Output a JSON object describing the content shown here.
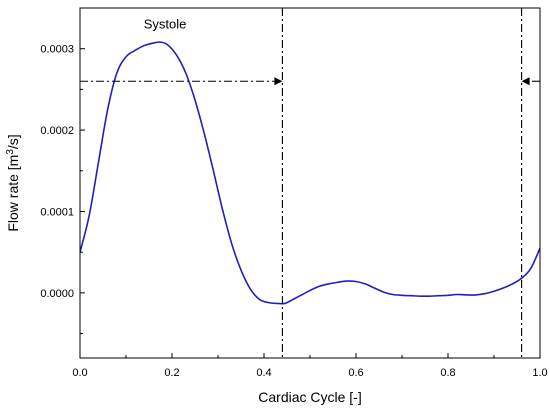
{
  "chart_data": {
    "type": "line",
    "xlabel": "Cardiac Cycle [-]",
    "ylabel_prefix": "Flow rate [m",
    "ylabel_sup": "3",
    "ylabel_suffix": "/s]",
    "xlim": [
      0.0,
      1.0
    ],
    "ylim": [
      -8e-05,
      0.00035
    ],
    "xticks": [
      0.0,
      0.2,
      0.4,
      0.6,
      0.8,
      1.0
    ],
    "xtick_labels": [
      "0.0",
      "0.2",
      "0.4",
      "0.6",
      "0.8",
      "1.0"
    ],
    "yticks": [
      0.0,
      0.0001,
      0.0002,
      0.0003
    ],
    "ytick_labels": [
      "0.0000",
      "0.0001",
      "0.0002",
      "0.0003"
    ],
    "grid": false,
    "line_color": "#1f1fbf",
    "series": [
      {
        "x": [
          0.0,
          0.02,
          0.04,
          0.06,
          0.08,
          0.1,
          0.12,
          0.14,
          0.16,
          0.175,
          0.19,
          0.21,
          0.23,
          0.25,
          0.27,
          0.29,
          0.31,
          0.33,
          0.35,
          0.37,
          0.39,
          0.41,
          0.43,
          0.445,
          0.46,
          0.48,
          0.5,
          0.52,
          0.54,
          0.56,
          0.58,
          0.6,
          0.62,
          0.64,
          0.66,
          0.68,
          0.7,
          0.72,
          0.74,
          0.76,
          0.78,
          0.8,
          0.82,
          0.84,
          0.86,
          0.88,
          0.9,
          0.92,
          0.94,
          0.96,
          0.98,
          1.0
        ],
        "y": [
          5e-05,
          9.5e-05,
          0.00016,
          0.000225,
          0.00027,
          0.00029,
          0.000298,
          0.000304,
          0.000307,
          0.000308,
          0.000305,
          0.000292,
          0.00027,
          0.000237,
          0.000196,
          0.00015,
          0.000102,
          6e-05,
          2.8e-05,
          5e-06,
          -8e-06,
          -1.2e-05,
          -1.3e-05,
          -1.3e-05,
          -9e-06,
          -3e-06,
          3e-06,
          8e-06,
          1.1e-05,
          1.3e-05,
          1.45e-05,
          1.4e-05,
          1.1e-05,
          6e-06,
          1e-06,
          -2e-06,
          -3e-06,
          -3.5e-06,
          -4e-06,
          -4e-06,
          -3.5e-06,
          -3e-06,
          -2e-06,
          -2.5e-06,
          -2.5e-06,
          -1e-06,
          2e-06,
          6e-06,
          1.1e-05,
          1.8e-05,
          3e-05,
          5.5e-05
        ]
      }
    ],
    "vlines": [
      0.44,
      0.96
    ],
    "arrow_level": 0.00026,
    "arrows": [
      {
        "from": 0.0,
        "to": 0.44
      },
      {
        "from": 1.0,
        "to": 0.96
      }
    ],
    "annotations": [
      {
        "text": "Systole",
        "x": 0.185,
        "y": 0.000325
      }
    ]
  }
}
